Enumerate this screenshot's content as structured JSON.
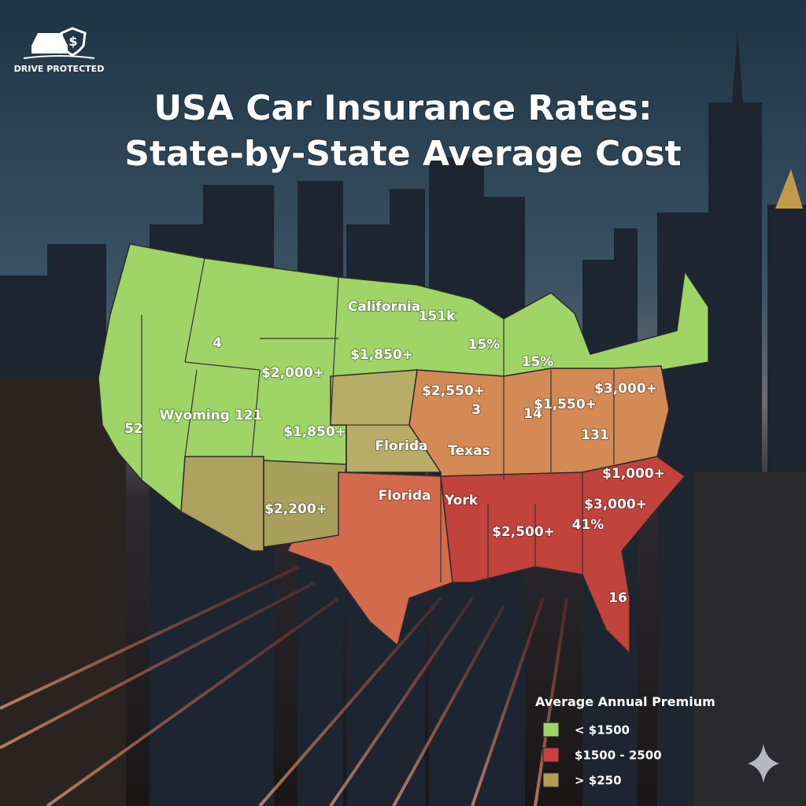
{
  "brand": "DRIVE PROTECTED",
  "title": [
    "USA Car Insurance Rates:",
    "State-by-State Average Cost"
  ],
  "map_labels": [
    "4",
    "California",
    "151k",
    "$1,850+",
    "15%",
    "15%",
    "$2,000+",
    "52",
    "Wyoming 121",
    "$2,550+",
    "3",
    "14",
    "$1,550+",
    "$3,000+",
    "$1,850+",
    "Florida",
    "Texas",
    "131",
    "$1,000+",
    "$2,200+",
    "Florida",
    "York",
    "$3,000+",
    "41%",
    "$2,500+",
    "16"
  ],
  "legend": {
    "title": "Average Annual Premium",
    "items": [
      {
        "label": "< $1500",
        "color": "#9fd466"
      },
      {
        "label": "$1500 - 2500",
        "color": "#c94040"
      },
      {
        "label": "> $250",
        "color": "#b59a5a"
      }
    ]
  }
}
